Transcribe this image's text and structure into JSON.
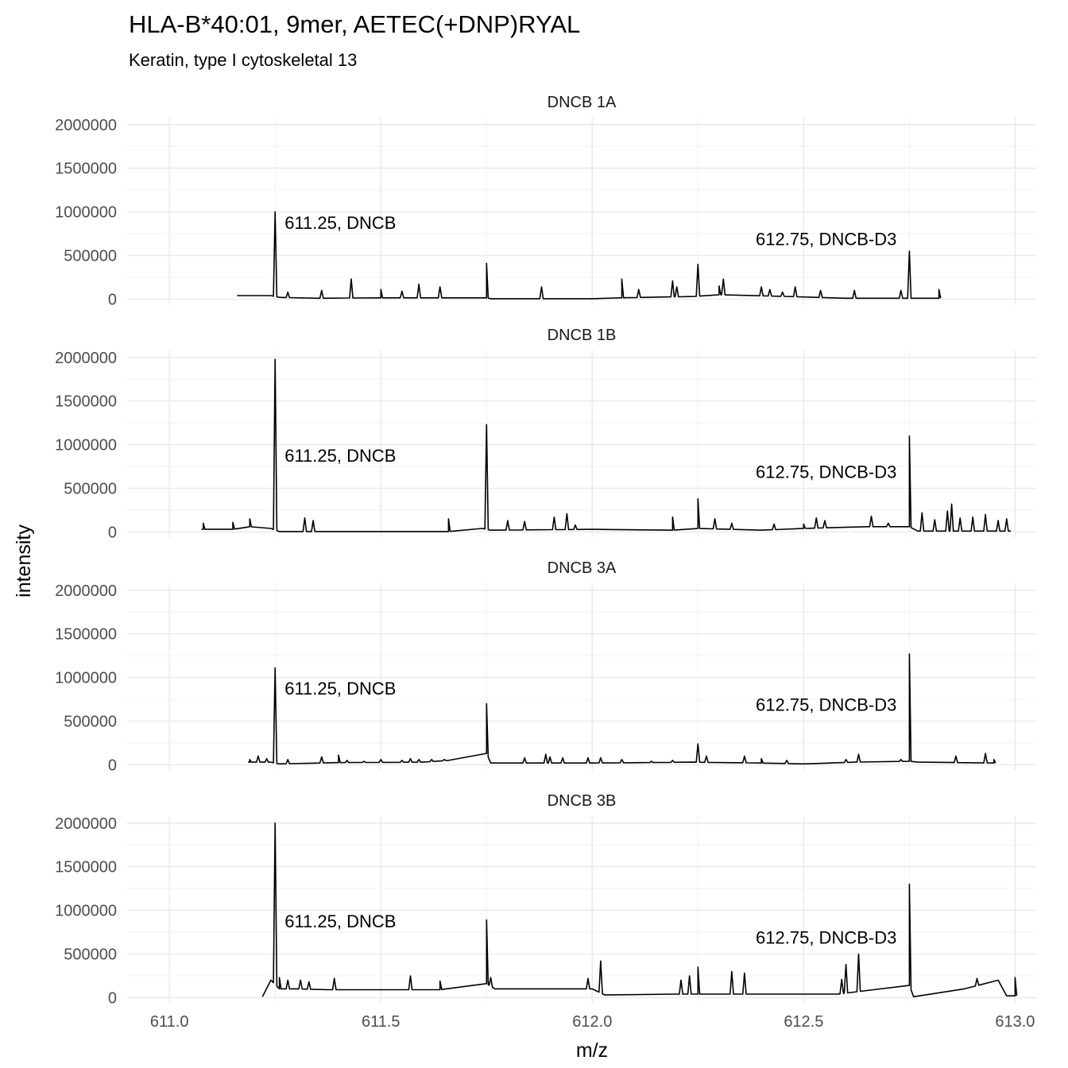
{
  "chart_data": {
    "type": "line",
    "title": "HLA-B*40:01, 9mer, AETEC(+DNP)RYAL",
    "subtitle": "Keratin, type I cytoskeletal 13",
    "xlabel": "m/z",
    "ylabel": "intensity",
    "xlim": [
      610.9,
      613.05
    ],
    "ylim": [
      -60000,
      2080000
    ],
    "x_ticks": [
      611.0,
      611.5,
      612.0,
      612.5,
      613.0
    ],
    "x_tick_labels": [
      "611.0",
      "611.5",
      "612.0",
      "612.5",
      "613.0"
    ],
    "y_ticks": [
      0,
      500000,
      1000000,
      1500000,
      2000000
    ],
    "y_tick_labels": [
      "0",
      "500000",
      "1000000",
      "1500000",
      "2000000"
    ],
    "grid": true,
    "facets": [
      {
        "name": "DNCB 1A",
        "annotations": [
          {
            "text": "611.25, DNCB",
            "x": 611.25,
            "y": 880000
          },
          {
            "text": "612.75, DNCB-D3",
            "x": 612.75,
            "y": 690000
          }
        ],
        "baseline": [
          [
            611.16,
            40000
          ],
          [
            611.24,
            40000
          ],
          [
            611.26,
            20000
          ],
          [
            611.35,
            10000
          ],
          [
            611.5,
            15000
          ],
          [
            611.75,
            15000
          ],
          [
            611.76,
            5000
          ],
          [
            612.0,
            5000
          ],
          [
            612.07,
            15000
          ],
          [
            612.24,
            30000
          ],
          [
            612.3,
            50000
          ],
          [
            612.5,
            25000
          ],
          [
            612.6,
            10000
          ],
          [
            612.74,
            10000
          ],
          [
            612.76,
            10000
          ],
          [
            612.82,
            10000
          ]
        ],
        "peaks": [
          [
            611.25,
            1000000
          ],
          [
            611.28,
            80000
          ],
          [
            611.36,
            100000
          ],
          [
            611.43,
            230000
          ],
          [
            611.5,
            110000
          ],
          [
            611.55,
            90000
          ],
          [
            611.59,
            170000
          ],
          [
            611.64,
            140000
          ],
          [
            611.75,
            410000
          ],
          [
            611.88,
            140000
          ],
          [
            612.07,
            230000
          ],
          [
            612.11,
            110000
          ],
          [
            612.19,
            210000
          ],
          [
            612.2,
            140000
          ],
          [
            612.25,
            400000
          ],
          [
            612.3,
            150000
          ],
          [
            612.31,
            230000
          ],
          [
            612.4,
            140000
          ],
          [
            612.42,
            110000
          ],
          [
            612.45,
            80000
          ],
          [
            612.48,
            140000
          ],
          [
            612.54,
            100000
          ],
          [
            612.62,
            100000
          ],
          [
            612.73,
            100000
          ],
          [
            612.75,
            550000
          ],
          [
            612.82,
            110000
          ]
        ]
      },
      {
        "name": "DNCB 1B",
        "annotations": [
          {
            "text": "611.25, DNCB",
            "x": 611.25,
            "y": 880000
          },
          {
            "text": "612.75, DNCB-D3",
            "x": 612.75,
            "y": 690000
          }
        ],
        "baseline": [
          [
            611.08,
            30000
          ],
          [
            611.15,
            30000
          ],
          [
            611.19,
            60000
          ],
          [
            611.24,
            40000
          ],
          [
            611.26,
            5000
          ],
          [
            611.5,
            5000
          ],
          [
            611.66,
            5000
          ],
          [
            611.74,
            40000
          ],
          [
            611.76,
            20000
          ],
          [
            612.0,
            30000
          ],
          [
            612.19,
            20000
          ],
          [
            612.25,
            40000
          ],
          [
            612.4,
            20000
          ],
          [
            612.5,
            40000
          ],
          [
            612.65,
            60000
          ],
          [
            612.75,
            60000
          ],
          [
            612.77,
            10000
          ],
          [
            612.99,
            10000
          ]
        ],
        "peaks": [
          [
            611.08,
            100000
          ],
          [
            611.15,
            110000
          ],
          [
            611.19,
            150000
          ],
          [
            611.25,
            1980000
          ],
          [
            611.32,
            160000
          ],
          [
            611.34,
            130000
          ],
          [
            611.66,
            150000
          ],
          [
            611.75,
            1230000
          ],
          [
            611.8,
            130000
          ],
          [
            611.84,
            120000
          ],
          [
            611.91,
            170000
          ],
          [
            611.94,
            210000
          ],
          [
            611.96,
            80000
          ],
          [
            612.19,
            170000
          ],
          [
            612.25,
            380000
          ],
          [
            612.29,
            150000
          ],
          [
            612.33,
            100000
          ],
          [
            612.43,
            90000
          ],
          [
            612.5,
            90000
          ],
          [
            612.53,
            160000
          ],
          [
            612.55,
            130000
          ],
          [
            612.66,
            180000
          ],
          [
            612.7,
            100000
          ],
          [
            612.75,
            1100000
          ],
          [
            612.78,
            220000
          ],
          [
            612.81,
            140000
          ],
          [
            612.84,
            240000
          ],
          [
            612.85,
            320000
          ],
          [
            612.87,
            160000
          ],
          [
            612.9,
            170000
          ],
          [
            612.93,
            200000
          ],
          [
            612.96,
            130000
          ],
          [
            612.98,
            150000
          ]
        ]
      },
      {
        "name": "DNCB 3A",
        "annotations": [
          {
            "text": "611.25, DNCB",
            "x": 611.25,
            "y": 880000
          },
          {
            "text": "612.75, DNCB-D3",
            "x": 612.75,
            "y": 690000
          }
        ],
        "baseline": [
          [
            611.19,
            30000
          ],
          [
            611.24,
            30000
          ],
          [
            611.26,
            10000
          ],
          [
            611.4,
            25000
          ],
          [
            611.6,
            30000
          ],
          [
            611.66,
            50000
          ],
          [
            611.75,
            130000
          ],
          [
            611.76,
            20000
          ],
          [
            612.0,
            20000
          ],
          [
            612.24,
            30000
          ],
          [
            612.4,
            20000
          ],
          [
            612.5,
            10000
          ],
          [
            612.62,
            30000
          ],
          [
            612.75,
            40000
          ],
          [
            612.77,
            30000
          ],
          [
            612.95,
            20000
          ]
        ],
        "peaks": [
          [
            611.19,
            60000
          ],
          [
            611.21,
            100000
          ],
          [
            611.23,
            70000
          ],
          [
            611.25,
            1110000
          ],
          [
            611.28,
            60000
          ],
          [
            611.36,
            90000
          ],
          [
            611.4,
            110000
          ],
          [
            611.42,
            50000
          ],
          [
            611.46,
            40000
          ],
          [
            611.5,
            60000
          ],
          [
            611.55,
            50000
          ],
          [
            611.57,
            70000
          ],
          [
            611.59,
            60000
          ],
          [
            611.62,
            60000
          ],
          [
            611.65,
            60000
          ],
          [
            611.75,
            700000
          ],
          [
            611.84,
            80000
          ],
          [
            611.89,
            120000
          ],
          [
            611.9,
            90000
          ],
          [
            611.93,
            80000
          ],
          [
            611.99,
            80000
          ],
          [
            612.02,
            80000
          ],
          [
            612.07,
            60000
          ],
          [
            612.14,
            40000
          ],
          [
            612.19,
            50000
          ],
          [
            612.25,
            240000
          ],
          [
            612.27,
            100000
          ],
          [
            612.36,
            100000
          ],
          [
            612.4,
            70000
          ],
          [
            612.46,
            50000
          ],
          [
            612.6,
            60000
          ],
          [
            612.63,
            120000
          ],
          [
            612.73,
            60000
          ],
          [
            612.75,
            1270000
          ],
          [
            612.86,
            100000
          ],
          [
            612.93,
            130000
          ],
          [
            612.95,
            60000
          ]
        ]
      },
      {
        "name": "DNCB 3B",
        "annotations": [
          {
            "text": "611.25, DNCB",
            "x": 611.25,
            "y": 880000
          },
          {
            "text": "612.75, DNCB-D3",
            "x": 612.75,
            "y": 690000
          }
        ],
        "baseline": [
          [
            611.22,
            10000
          ],
          [
            611.24,
            200000
          ],
          [
            611.26,
            100000
          ],
          [
            611.3,
            100000
          ],
          [
            611.38,
            90000
          ],
          [
            611.56,
            90000
          ],
          [
            611.64,
            90000
          ],
          [
            611.75,
            160000
          ],
          [
            611.77,
            100000
          ],
          [
            612.0,
            100000
          ],
          [
            612.03,
            30000
          ],
          [
            612.2,
            40000
          ],
          [
            612.25,
            40000
          ],
          [
            612.3,
            40000
          ],
          [
            612.34,
            40000
          ],
          [
            612.58,
            40000
          ],
          [
            612.75,
            140000
          ],
          [
            612.76,
            10000
          ],
          [
            612.88,
            100000
          ],
          [
            612.96,
            200000
          ],
          [
            612.98,
            20000
          ],
          [
            613.0,
            20000
          ]
        ],
        "peaks": [
          [
            611.25,
            2000000
          ],
          [
            611.26,
            230000
          ],
          [
            611.28,
            200000
          ],
          [
            611.31,
            200000
          ],
          [
            611.33,
            180000
          ],
          [
            611.39,
            220000
          ],
          [
            611.57,
            250000
          ],
          [
            611.64,
            190000
          ],
          [
            611.75,
            890000
          ],
          [
            611.76,
            230000
          ],
          [
            611.99,
            220000
          ],
          [
            612.02,
            420000
          ],
          [
            612.21,
            200000
          ],
          [
            612.23,
            250000
          ],
          [
            612.25,
            350000
          ],
          [
            612.33,
            300000
          ],
          [
            612.36,
            280000
          ],
          [
            612.59,
            210000
          ],
          [
            612.6,
            380000
          ],
          [
            612.63,
            500000
          ],
          [
            612.75,
            1300000
          ],
          [
            612.91,
            220000
          ],
          [
            612.96,
            200000
          ],
          [
            613.0,
            230000
          ]
        ]
      }
    ]
  }
}
